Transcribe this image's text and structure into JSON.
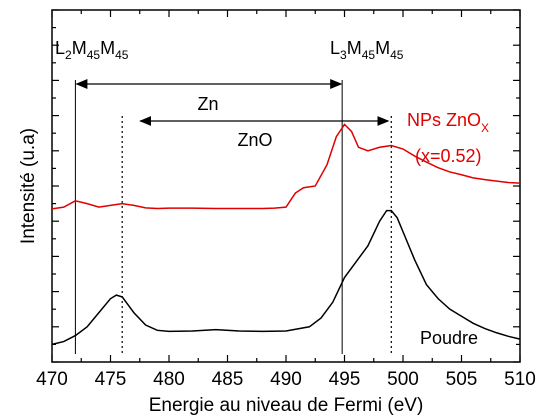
{
  "chart_data": {
    "type": "line",
    "xlabel": "Energie au niveau de Fermi (eV)",
    "ylabel": "Intensité (u.a)",
    "xlim": [
      470,
      510
    ],
    "ylim": [
      0,
      1
    ],
    "x_ticks": [
      "470",
      "475",
      "480",
      "485",
      "490",
      "495",
      "500",
      "505",
      "510"
    ],
    "y_tick_labels": false,
    "grid": false,
    "series": [
      {
        "name": "NPs ZnOX (x=0.52)",
        "color": "#e00000",
        "x": [
          470,
          471,
          472,
          473,
          474,
          475,
          476,
          477,
          478,
          479,
          480,
          482,
          484,
          486,
          488,
          489,
          490,
          490.8,
          491.5,
          492.5,
          493.5,
          494.3,
          495,
          495.6,
          496.2,
          497,
          498,
          499,
          500,
          501,
          502,
          503,
          504,
          505,
          506,
          507,
          508,
          509,
          510
        ],
        "y": [
          0.435,
          0.44,
          0.458,
          0.45,
          0.44,
          0.445,
          0.45,
          0.445,
          0.438,
          0.436,
          0.437,
          0.437,
          0.436,
          0.436,
          0.436,
          0.437,
          0.44,
          0.48,
          0.495,
          0.5,
          0.56,
          0.64,
          0.675,
          0.655,
          0.61,
          0.6,
          0.61,
          0.615,
          0.605,
          0.585,
          0.568,
          0.552,
          0.54,
          0.532,
          0.523,
          0.518,
          0.514,
          0.51,
          0.508
        ]
      },
      {
        "name": "Poudre",
        "color": "#000000",
        "x": [
          470,
          471,
          472,
          473,
          474,
          475,
          475.5,
          476,
          477,
          478,
          479,
          480,
          482,
          484,
          486,
          488,
          490,
          492,
          493,
          494,
          495,
          496,
          497,
          498,
          498.6,
          499,
          499.5,
          500,
          501,
          502,
          503,
          504,
          505,
          506,
          507,
          508,
          509,
          510
        ],
        "y": [
          0.05,
          0.058,
          0.075,
          0.1,
          0.14,
          0.18,
          0.19,
          0.185,
          0.14,
          0.105,
          0.09,
          0.087,
          0.088,
          0.092,
          0.088,
          0.087,
          0.088,
          0.1,
          0.125,
          0.17,
          0.24,
          0.285,
          0.33,
          0.4,
          0.43,
          0.43,
          0.41,
          0.37,
          0.29,
          0.22,
          0.18,
          0.15,
          0.13,
          0.11,
          0.095,
          0.083,
          0.073,
          0.065
        ]
      }
    ],
    "annotations": {
      "vlines_solid": [
        472,
        494.8
      ],
      "vlines_dotted": [
        476,
        499
      ],
      "left_peak_label": {
        "base": "L",
        "sub1": "2",
        "m1": "M",
        "sub2": "45",
        "m2": "M",
        "sub3": "45"
      },
      "right_peak_label": {
        "base": "L",
        "sub1": "3",
        "m1": "M",
        "sub2": "45",
        "m2": "M",
        "sub3": "45"
      },
      "zn_arrow": {
        "x1": 472,
        "x2": 494.8,
        "label": "Zn"
      },
      "zno_arrow": {
        "x1": 476,
        "x2": 499,
        "label": "ZnO"
      },
      "red_label_main": "NPs ZnO",
      "red_label_sub": "X",
      "red_label_line2": "(x=0.52)",
      "black_label": "Poudre"
    }
  }
}
